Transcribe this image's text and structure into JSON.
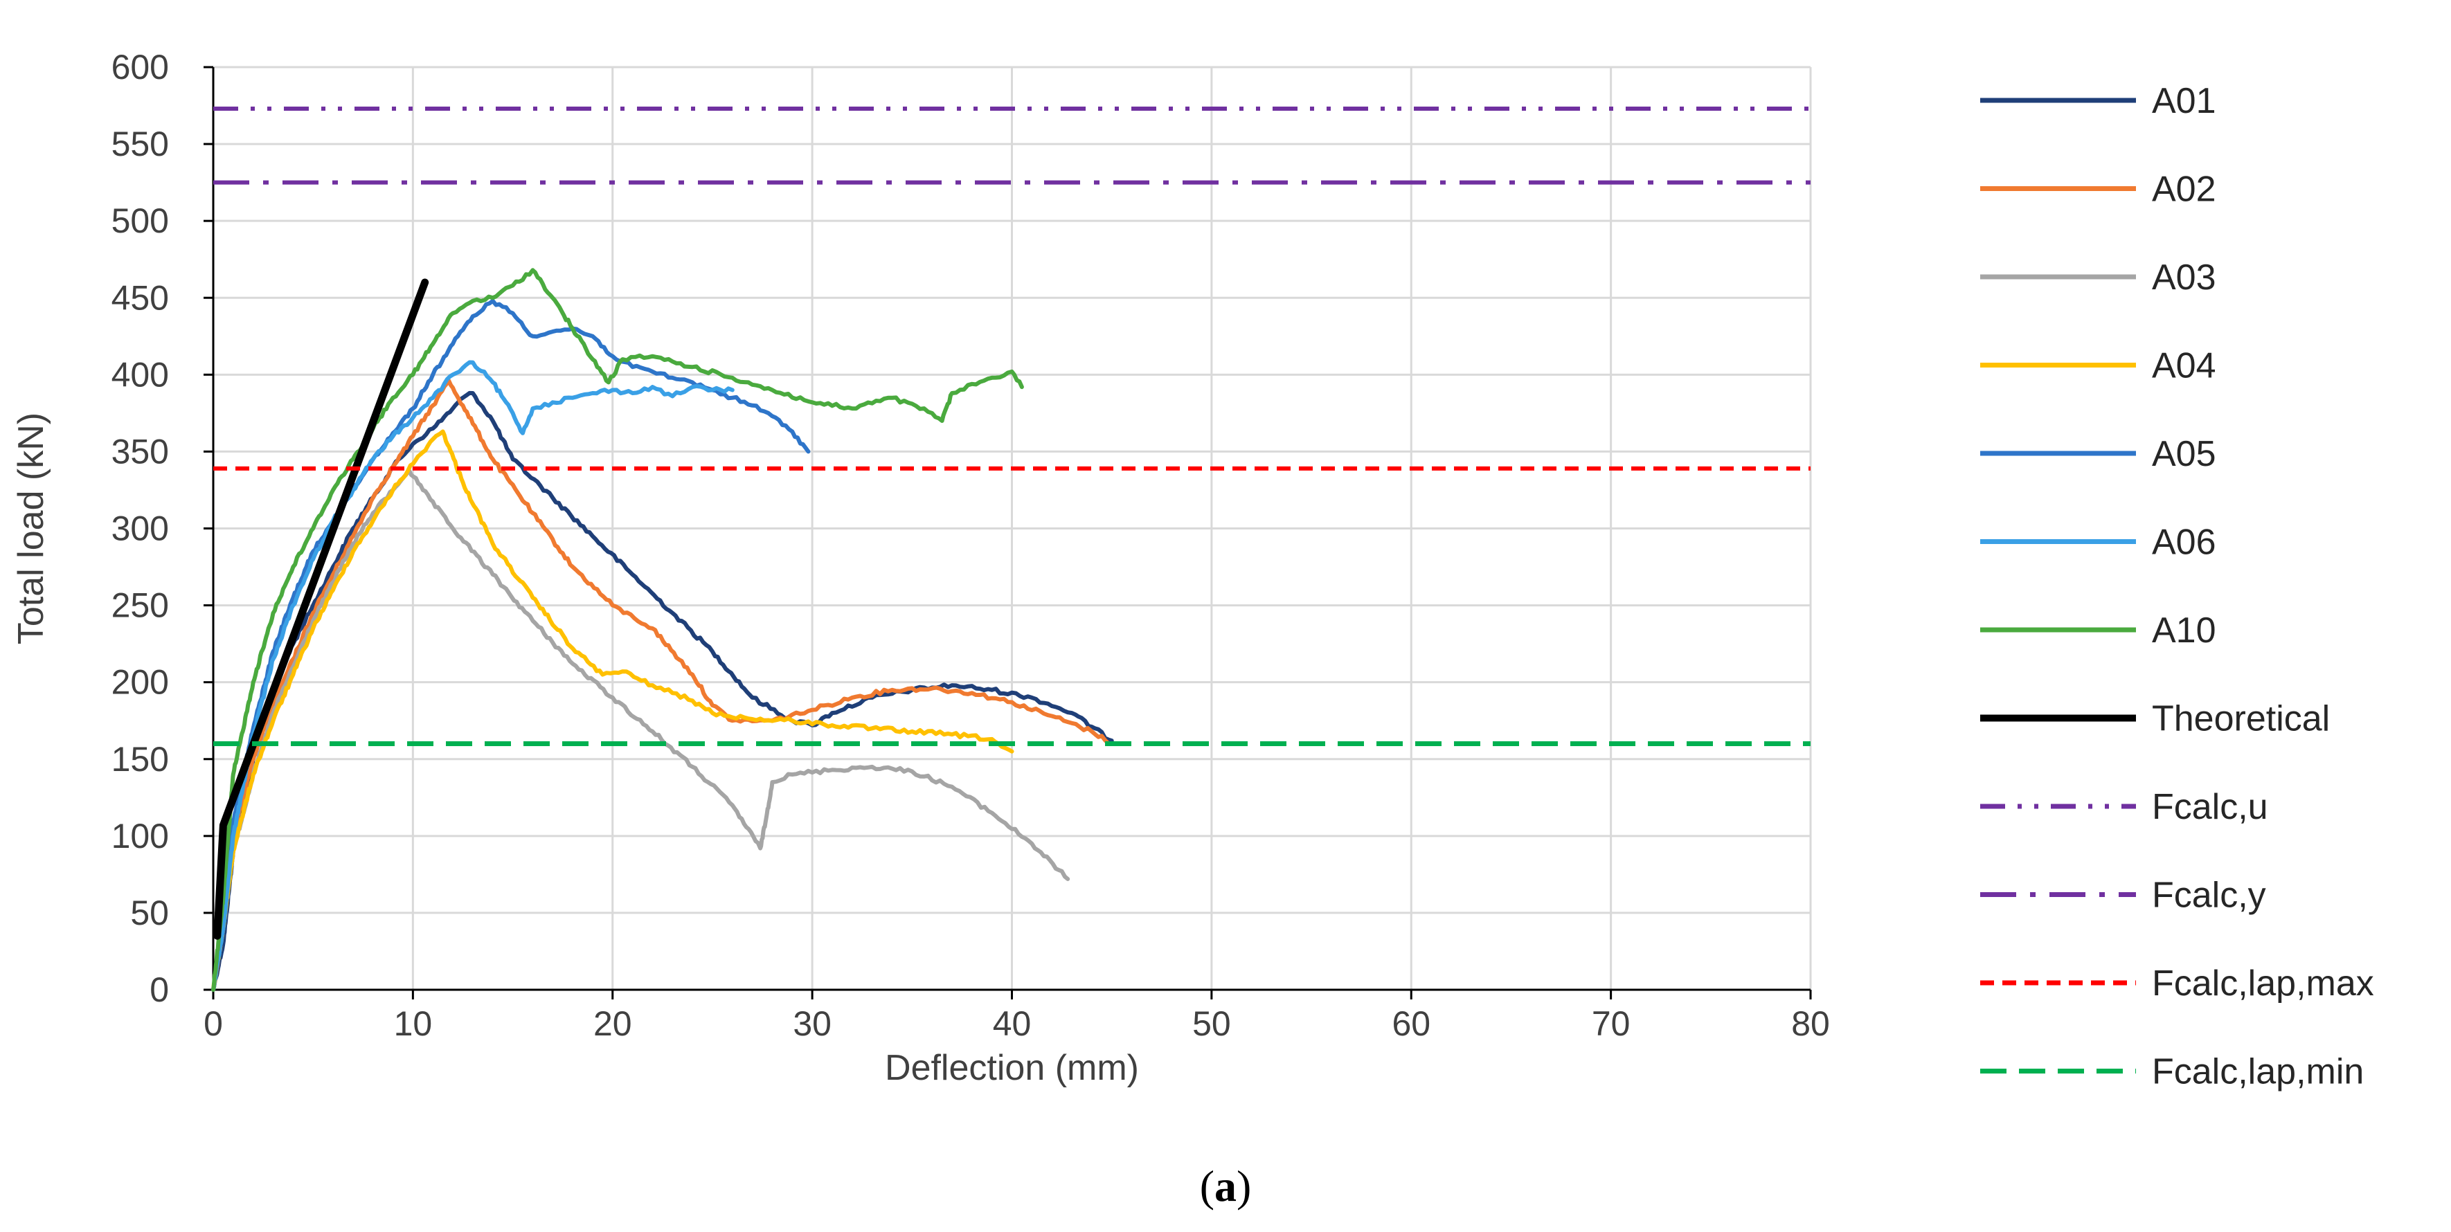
{
  "caption": {
    "open": "(",
    "letter": "a",
    "close": ")"
  },
  "chart_data": {
    "type": "line",
    "xlabel": "Deflection (mm)",
    "ylabel": "Total load (kN)",
    "xlim": [
      0,
      80
    ],
    "ylim": [
      0,
      600
    ],
    "xticks": [
      0,
      10,
      20,
      30,
      40,
      50,
      60,
      70,
      80
    ],
    "yticks": [
      0,
      50,
      100,
      150,
      200,
      250,
      300,
      350,
      400,
      450,
      500,
      550,
      600
    ],
    "grid": true,
    "legend_position": "right",
    "series": [
      {
        "name": "A01",
        "color": "#1f3f78",
        "dash": "solid",
        "width": 6,
        "jitter": 3,
        "points": [
          [
            0,
            0
          ],
          [
            0.5,
            30
          ],
          [
            1,
            90
          ],
          [
            2,
            150
          ],
          [
            3,
            195
          ],
          [
            4,
            225
          ],
          [
            5,
            250
          ],
          [
            6,
            275
          ],
          [
            7,
            300
          ],
          [
            8,
            320
          ],
          [
            9,
            340
          ],
          [
            10,
            355
          ],
          [
            11,
            365
          ],
          [
            12,
            378
          ],
          [
            12.5,
            385
          ],
          [
            13,
            388
          ],
          [
            14,
            370
          ],
          [
            15,
            345
          ],
          [
            17,
            320
          ],
          [
            19,
            295
          ],
          [
            21,
            270
          ],
          [
            23,
            245
          ],
          [
            25,
            220
          ],
          [
            27,
            190
          ],
          [
            29,
            175
          ],
          [
            30,
            172
          ],
          [
            31,
            180
          ],
          [
            33,
            190
          ],
          [
            35,
            195
          ],
          [
            37,
            198
          ],
          [
            39,
            195
          ],
          [
            41,
            190
          ],
          [
            43,
            180
          ],
          [
            45,
            162
          ]
        ]
      },
      {
        "name": "A02",
        "color": "#f07a30",
        "dash": "solid",
        "width": 6,
        "jitter": 3,
        "points": [
          [
            0,
            0
          ],
          [
            0.5,
            40
          ],
          [
            1,
            100
          ],
          [
            2,
            150
          ],
          [
            3,
            185
          ],
          [
            4,
            215
          ],
          [
            5,
            245
          ],
          [
            6,
            270
          ],
          [
            7,
            295
          ],
          [
            8,
            320
          ],
          [
            9,
            340
          ],
          [
            10,
            360
          ],
          [
            11,
            380
          ],
          [
            11.8,
            396
          ],
          [
            12.5,
            380
          ],
          [
            14,
            345
          ],
          [
            16,
            310
          ],
          [
            18,
            275
          ],
          [
            20,
            250
          ],
          [
            22,
            235
          ],
          [
            24,
            205
          ],
          [
            25,
            185
          ],
          [
            26,
            175
          ],
          [
            28,
            175
          ],
          [
            30,
            182
          ],
          [
            32,
            190
          ],
          [
            34,
            195
          ],
          [
            36,
            196
          ],
          [
            38,
            193
          ],
          [
            40,
            187
          ],
          [
            42,
            178
          ],
          [
            44,
            168
          ],
          [
            45,
            160
          ]
        ]
      },
      {
        "name": "A03",
        "color": "#a5a5a5",
        "dash": "solid",
        "width": 6,
        "jitter": 3,
        "points": [
          [
            0,
            0
          ],
          [
            0.5,
            40
          ],
          [
            1,
            90
          ],
          [
            2,
            140
          ],
          [
            3,
            180
          ],
          [
            4,
            210
          ],
          [
            5,
            240
          ],
          [
            6,
            265
          ],
          [
            7,
            290
          ],
          [
            8,
            310
          ],
          [
            9,
            325
          ],
          [
            9.8,
            338
          ],
          [
            10.5,
            325
          ],
          [
            12,
            300
          ],
          [
            14,
            270
          ],
          [
            16,
            240
          ],
          [
            18,
            212
          ],
          [
            20,
            190
          ],
          [
            22,
            168
          ],
          [
            24,
            145
          ],
          [
            26,
            120
          ],
          [
            27.4,
            92
          ],
          [
            27.7,
            112
          ],
          [
            28,
            135
          ],
          [
            29,
            140
          ],
          [
            31,
            143
          ],
          [
            33,
            145
          ],
          [
            35,
            142
          ],
          [
            37,
            132
          ],
          [
            39,
            115
          ],
          [
            41,
            95
          ],
          [
            42.8,
            72
          ]
        ]
      },
      {
        "name": "A04",
        "color": "#ffc000",
        "dash": "solid",
        "width": 6,
        "jitter": 3,
        "points": [
          [
            0,
            0
          ],
          [
            0.5,
            40
          ],
          [
            1,
            90
          ],
          [
            2,
            140
          ],
          [
            3,
            175
          ],
          [
            4,
            205
          ],
          [
            5,
            235
          ],
          [
            6,
            260
          ],
          [
            7,
            285
          ],
          [
            8,
            305
          ],
          [
            9,
            325
          ],
          [
            10,
            342
          ],
          [
            11,
            358
          ],
          [
            11.5,
            363
          ],
          [
            12.5,
            330
          ],
          [
            14,
            290
          ],
          [
            16,
            255
          ],
          [
            18,
            222
          ],
          [
            19.5,
            205
          ],
          [
            20.5,
            207
          ],
          [
            22,
            198
          ],
          [
            24,
            188
          ],
          [
            25,
            180
          ],
          [
            27,
            176
          ],
          [
            29,
            175
          ],
          [
            31,
            172
          ],
          [
            33,
            170
          ],
          [
            35,
            168
          ],
          [
            37,
            166
          ],
          [
            39,
            163
          ],
          [
            39.5,
            158
          ],
          [
            40,
            155
          ]
        ]
      },
      {
        "name": "A05",
        "color": "#2e75c9",
        "dash": "solid",
        "width": 6,
        "jitter": 3,
        "points": [
          [
            0,
            0
          ],
          [
            0.5,
            40
          ],
          [
            1,
            110
          ],
          [
            2,
            170
          ],
          [
            3,
            220
          ],
          [
            4,
            255
          ],
          [
            5,
            285
          ],
          [
            6,
            305
          ],
          [
            7,
            325
          ],
          [
            8,
            345
          ],
          [
            9,
            362
          ],
          [
            10,
            378
          ],
          [
            11,
            400
          ],
          [
            12,
            420
          ],
          [
            13,
            438
          ],
          [
            14,
            448
          ],
          [
            15,
            440
          ],
          [
            16,
            425
          ],
          [
            17,
            428
          ],
          [
            18,
            430
          ],
          [
            19,
            425
          ],
          [
            20,
            412
          ],
          [
            21,
            405
          ],
          [
            22,
            402
          ],
          [
            23,
            398
          ],
          [
            24,
            395
          ],
          [
            25,
            390
          ],
          [
            26,
            385
          ],
          [
            27,
            380
          ],
          [
            28,
            373
          ],
          [
            29,
            363
          ],
          [
            29.8,
            350
          ]
        ]
      },
      {
        "name": "A06",
        "color": "#3aa0e6",
        "dash": "solid",
        "width": 6,
        "jitter": 3,
        "points": [
          [
            0,
            0
          ],
          [
            0.5,
            40
          ],
          [
            1,
            100
          ],
          [
            2,
            165
          ],
          [
            3,
            215
          ],
          [
            4,
            250
          ],
          [
            5,
            280
          ],
          [
            6,
            305
          ],
          [
            7,
            325
          ],
          [
            8,
            345
          ],
          [
            9,
            360
          ],
          [
            10,
            372
          ],
          [
            11,
            385
          ],
          [
            12,
            400
          ],
          [
            13,
            408
          ],
          [
            14,
            395
          ],
          [
            15,
            375
          ],
          [
            15.5,
            362
          ],
          [
            16,
            378
          ],
          [
            17,
            382
          ],
          [
            18,
            385
          ],
          [
            19,
            388
          ],
          [
            20,
            390
          ],
          [
            21,
            388
          ],
          [
            22,
            392
          ],
          [
            23,
            386
          ],
          [
            24,
            392
          ],
          [
            25,
            390
          ],
          [
            26,
            390
          ]
        ]
      },
      {
        "name": "A10",
        "color": "#4aaa3e",
        "dash": "solid",
        "width": 6,
        "jitter": 3,
        "points": [
          [
            0,
            0
          ],
          [
            0.5,
            60
          ],
          [
            1,
            140
          ],
          [
            2,
            200
          ],
          [
            3,
            245
          ],
          [
            4,
            275
          ],
          [
            5,
            300
          ],
          [
            6,
            325
          ],
          [
            7,
            345
          ],
          [
            8,
            365
          ],
          [
            9,
            385
          ],
          [
            10,
            400
          ],
          [
            11,
            420
          ],
          [
            12,
            440
          ],
          [
            13,
            448
          ],
          [
            14,
            450
          ],
          [
            15,
            458
          ],
          [
            16,
            468
          ],
          [
            17,
            450
          ],
          [
            18,
            430
          ],
          [
            19,
            410
          ],
          [
            19.8,
            395
          ],
          [
            20.5,
            410
          ],
          [
            22,
            412
          ],
          [
            24,
            405
          ],
          [
            26,
            398
          ],
          [
            28,
            390
          ],
          [
            30,
            382
          ],
          [
            32,
            378
          ],
          [
            34,
            385
          ],
          [
            36,
            375
          ],
          [
            36.5,
            370
          ],
          [
            37,
            388
          ],
          [
            39,
            398
          ],
          [
            40,
            402
          ],
          [
            40.5,
            392
          ]
        ]
      },
      {
        "name": "Theoretical",
        "color": "#000000",
        "dash": "solid",
        "width": 11,
        "jitter": 0,
        "points": [
          [
            0.2,
            35
          ],
          [
            0.5,
            107
          ],
          [
            10.6,
            460
          ]
        ]
      },
      {
        "name": "Fcalc,u",
        "color": "#7030a0",
        "dash": "dash-dot-dot",
        "width": 6,
        "jitter": 0,
        "points": [
          [
            0,
            573
          ],
          [
            80,
            573
          ]
        ]
      },
      {
        "name": "Fcalc,y",
        "color": "#7030a0",
        "dash": "dash-dot",
        "width": 6,
        "jitter": 0,
        "points": [
          [
            0,
            525
          ],
          [
            80,
            525
          ]
        ]
      },
      {
        "name": "Fcalc,lap,max",
        "color": "#ff0000",
        "dash": "short-dash",
        "width": 6,
        "jitter": 0,
        "points": [
          [
            0,
            339
          ],
          [
            80,
            339
          ]
        ]
      },
      {
        "name": "Fcalc,lap,min",
        "color": "#00b050",
        "dash": "long-dash",
        "width": 7,
        "jitter": 0,
        "points": [
          [
            0,
            160
          ],
          [
            80,
            160
          ]
        ]
      }
    ]
  }
}
